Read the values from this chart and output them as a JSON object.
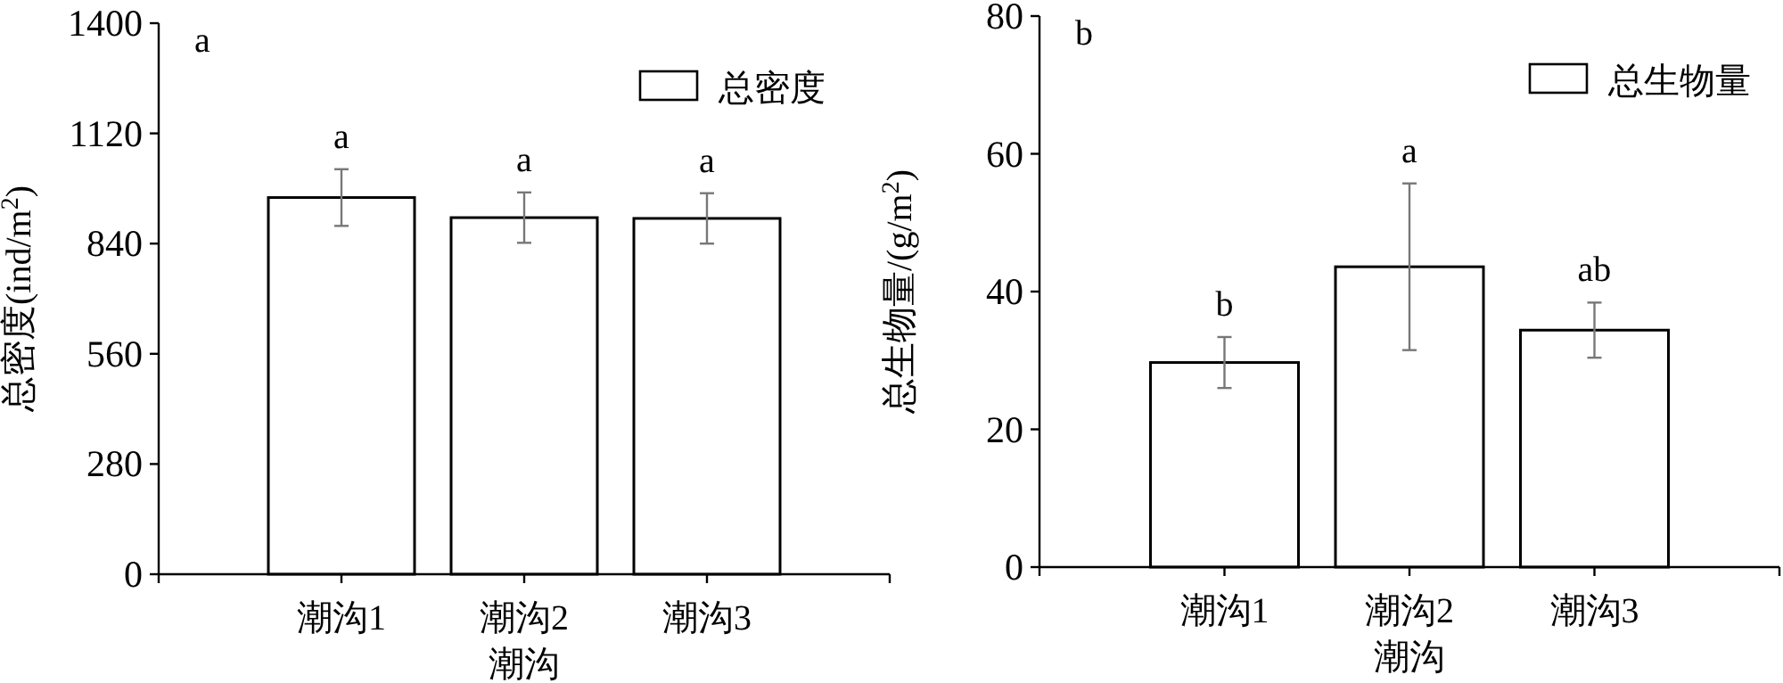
{
  "chart_data": [
    {
      "type": "bar",
      "title": "a",
      "xlabel": "潮沟",
      "ylabel": "总密度(ind/m$^{2}$)",
      "categories": [
        "潮沟1",
        "潮沟2",
        "潮沟3"
      ],
      "series": [
        {
          "name": "总密度",
          "color": "#ffffff",
          "values": [
            957,
            906,
            904
          ],
          "errors": [
            72,
            64,
            64
          ]
        }
      ],
      "ylim": [
        0,
        1400
      ],
      "yticks": [
        0,
        280,
        560,
        840,
        1120,
        1400
      ],
      "legend": "top right",
      "grid": false,
      "annotations": [
        "a",
        "a",
        "a"
      ]
    },
    {
      "type": "bar",
      "title": "b",
      "xlabel": "潮沟",
      "ylabel": "总生物量/(g/m$^{2}$)",
      "categories": [
        "潮沟1",
        "潮沟2",
        "潮沟3"
      ],
      "series": [
        {
          "name": "总生物量",
          "color": "#ffffff",
          "values": [
            29.7,
            43.6,
            34.4
          ],
          "errors": [
            3.7,
            12.1,
            4.0
          ]
        }
      ],
      "ylim": [
        0,
        80
      ],
      "yticks": [
        0,
        20,
        40,
        60,
        80
      ],
      "legend": "top right",
      "grid": false,
      "annotations": [
        "b",
        "a",
        "ab"
      ]
    }
  ]
}
